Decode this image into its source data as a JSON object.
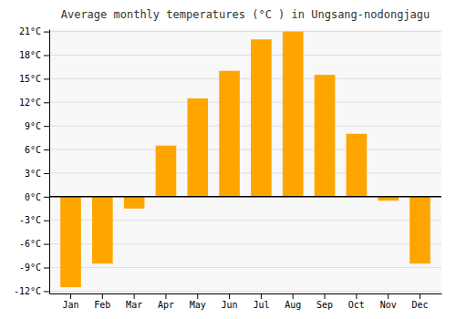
{
  "chart_data": {
    "type": "bar",
    "title": "Average monthly temperatures (°C ) in Ungsang-nodongjagu",
    "categories": [
      "Jan",
      "Feb",
      "Mar",
      "Apr",
      "May",
      "Jun",
      "Jul",
      "Aug",
      "Sep",
      "Oct",
      "Nov",
      "Dec"
    ],
    "values": [
      -11.5,
      -8.5,
      -1.5,
      6.5,
      12.5,
      16.0,
      20.0,
      21.0,
      15.5,
      8.0,
      -0.5,
      -8.5
    ],
    "color": "#FFA500",
    "ylim": [
      -12.3,
      21.3
    ],
    "yticks": [
      {
        "value": -12,
        "label": "-12°C"
      },
      {
        "value": -9,
        "label": "-9°C"
      },
      {
        "value": -6,
        "label": "-6°C"
      },
      {
        "value": -3,
        "label": "-3°C"
      },
      {
        "value": 0,
        "label": "0°C"
      },
      {
        "value": 3,
        "label": "3°C"
      },
      {
        "value": 6,
        "label": "6°C"
      },
      {
        "value": 9,
        "label": "9°C"
      },
      {
        "value": 12,
        "label": "12°C"
      },
      {
        "value": 15,
        "label": "15°C"
      },
      {
        "value": 18,
        "label": "18°C"
      },
      {
        "value": 21,
        "label": "21°C"
      }
    ],
    "grid": true
  }
}
